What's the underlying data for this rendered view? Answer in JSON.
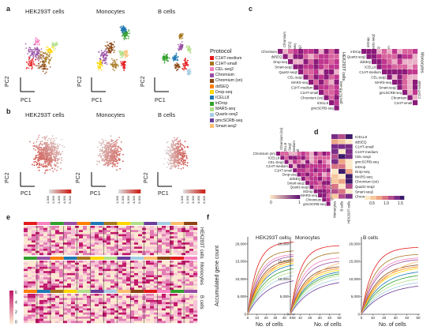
{
  "panel_letters": {
    "a": "a",
    "b": "b",
    "c": "c",
    "d": "d",
    "e": "e",
    "f": "f"
  },
  "panel_a": {
    "titles": [
      "HEK293T cells",
      "Monocytes",
      "B cells"
    ],
    "x_axis": "PC1",
    "y_axis": "PC2",
    "legend_title": "Protocol",
    "legend_items": [
      {
        "label": "C1HT-medium",
        "color": "#e41a1c"
      },
      {
        "label": "C1HT-small",
        "color": "#a6761d"
      },
      {
        "label": "CEL-seq2",
        "color": "#f781bf"
      },
      {
        "label": "Chromium",
        "color": "#984ea3"
      },
      {
        "label": "Chromium (sn)",
        "color": "#8b4513"
      },
      {
        "label": "ddSEQ",
        "color": "#ff7f00"
      },
      {
        "label": "Drop-seq",
        "color": "#ffd700"
      },
      {
        "label": "ICELL8",
        "color": "#1f78b4"
      },
      {
        "label": "inDrop",
        "color": "#33a02c"
      },
      {
        "label": "MARS-seq",
        "color": "#b2df8a"
      },
      {
        "label": "Quartz-seq2",
        "color": "#a6cee3"
      },
      {
        "label": "gmcSCRB-seq",
        "color": "#6a3d9a"
      },
      {
        "label": "Smart-seq2",
        "color": "#fdbf6f"
      }
    ]
  },
  "panel_b": {
    "titles": [
      "HEK293T cells",
      "Monocytes",
      "B cells"
    ],
    "x_axis": "PC1",
    "y_axis": "PC2",
    "colorbar_labels": [
      "1,000",
      "2,000",
      "3,000",
      "4,000",
      "5,000"
    ],
    "colorbar_title": "nGenes"
  },
  "panel_c": {
    "groups": [
      {
        "name": "HEK293T cells",
        "order": [
          "Chromium",
          "ddSEQ",
          "Drop-seq",
          "Smart-seq2",
          "Quartz-seq2",
          "CEL-seq2",
          "MARS-seq",
          "C1HT-medium",
          "C1HT-small",
          "Chromium (sn)",
          "ICELL8",
          "gmcSCRB-seq"
        ]
      },
      {
        "name": "Monocytes",
        "order": [
          "inDrop",
          "Quartz-seq2",
          "ddSEQ",
          "ICELL8",
          "C1HT-medium",
          "CEL-seq2",
          "MARS-seq",
          "Smart-seq2",
          "gmcSCRB-seq",
          "Chromium",
          "C1HT-small"
        ]
      },
      {
        "name": "B cells",
        "order": [
          "Chromium (sn)",
          "ICELL8",
          "CEL-Seq2",
          "C1HT-medium",
          "C1HT-small",
          "Drop-seq",
          "ddSEQ",
          "Smart-seq2",
          "Quartz-seq2",
          "inDrop",
          "MARS-seq",
          "Chromium",
          "gmcSCRB-seq"
        ]
      }
    ],
    "colorbar_min": "0",
    "colorbar_max": "1"
  },
  "panel_d": {
    "rows": [
      "ICELL8",
      "ddSEQ",
      "C1HT-small",
      "C1HT-medium",
      "CEL-seq2",
      "gmcSCRB-seq",
      "inDrop",
      "Drop-seq",
      "MARS-seq",
      "Chromium (sn)",
      "Quartz-seq2",
      "Smart-seq2",
      "Chromium"
    ],
    "columns": [
      "Monocytes",
      "B cells",
      "HEK293T cells"
    ],
    "colorbar_labels": [
      "0.5",
      "1.0",
      "1.5"
    ]
  },
  "panel_e": {
    "row_labels": [
      "HEK293T cells",
      "Monocytes",
      "B cells"
    ],
    "colorbar_labels": [
      "6",
      "4",
      "2",
      "0"
    ]
  },
  "panel_f": {
    "ylabel": "Accumulated gene count",
    "xlabel": "No. of cells",
    "panels": [
      {
        "title": "HEK293T cells",
        "yticks": [
          "0",
          "5,000",
          "10,000",
          "15,000",
          "20,000"
        ],
        "xticks": [
          "0",
          "10",
          "20",
          "30",
          "40",
          "50"
        ]
      },
      {
        "title": "Monocytes",
        "yticks": [
          "0",
          "5,000",
          "10,000",
          "15,000",
          "20,000"
        ],
        "xticks": [
          "0",
          "10",
          "20",
          "30",
          "40",
          "50"
        ]
      },
      {
        "title": "B cells",
        "yticks": [
          "0",
          "5,000",
          "10,000",
          "15,000",
          "20,000"
        ],
        "xticks": [
          "0",
          "10",
          "20",
          "30",
          "40",
          "50"
        ]
      }
    ]
  }
}
